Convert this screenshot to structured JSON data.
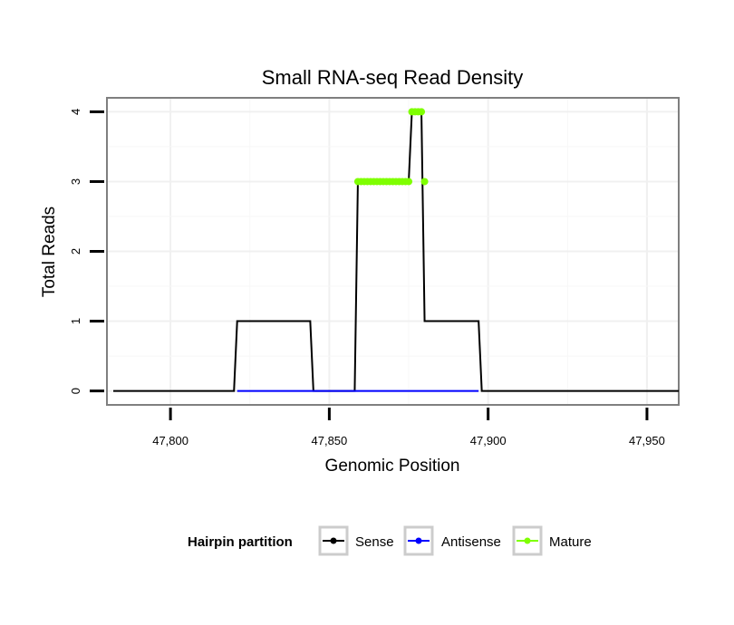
{
  "chart_data": {
    "type": "line",
    "title": "Small RNA-seq Read Density",
    "xlabel": "Genomic Position",
    "ylabel": "Total Reads",
    "xlim": [
      47780,
      47960
    ],
    "ylim": [
      -0.2,
      4.2
    ],
    "x_ticks": [
      47800,
      47850,
      47900,
      47950
    ],
    "x_tick_labels": [
      "47,800",
      "47,850",
      "47,900",
      "47,950"
    ],
    "y_ticks": [
      0,
      1,
      2,
      3,
      4
    ],
    "y_tick_labels": [
      "0",
      "1",
      "2",
      "3",
      "4"
    ],
    "grid": true,
    "legend": {
      "title": "Hairpin partition",
      "position": "bottom",
      "entries": [
        {
          "label": "Sense",
          "color": "#000000"
        },
        {
          "label": "Antisense",
          "color": "#0000ff"
        },
        {
          "label": "Mature",
          "color": "#7fff00"
        }
      ]
    },
    "series": [
      {
        "name": "Sense",
        "color": "#000000",
        "points": [
          [
            47782,
            0
          ],
          [
            47820,
            0
          ],
          [
            47821,
            1
          ],
          [
            47844,
            1
          ],
          [
            47845,
            0
          ],
          [
            47858,
            0
          ],
          [
            47859,
            3
          ],
          [
            47875,
            3
          ],
          [
            47876,
            4
          ],
          [
            47879,
            4
          ],
          [
            47880,
            1
          ],
          [
            47897,
            1
          ],
          [
            47898,
            0
          ],
          [
            47960,
            0
          ]
        ]
      },
      {
        "name": "Antisense",
        "color": "#0000ff",
        "points": [
          [
            47821,
            0
          ],
          [
            47897,
            0
          ]
        ]
      },
      {
        "name": "Mature",
        "color": "#7fff00",
        "points": [
          [
            47859,
            3
          ],
          [
            47860,
            3
          ],
          [
            47861,
            3
          ],
          [
            47862,
            3
          ],
          [
            47863,
            3
          ],
          [
            47864,
            3
          ],
          [
            47865,
            3
          ],
          [
            47866,
            3
          ],
          [
            47867,
            3
          ],
          [
            47868,
            3
          ],
          [
            47869,
            3
          ],
          [
            47870,
            3
          ],
          [
            47871,
            3
          ],
          [
            47872,
            3
          ],
          [
            47873,
            3
          ],
          [
            47874,
            3
          ],
          [
            47875,
            3
          ],
          [
            47876,
            4
          ],
          [
            47877,
            4
          ],
          [
            47878,
            4
          ],
          [
            47879,
            4
          ],
          [
            47880,
            3
          ]
        ]
      }
    ]
  }
}
